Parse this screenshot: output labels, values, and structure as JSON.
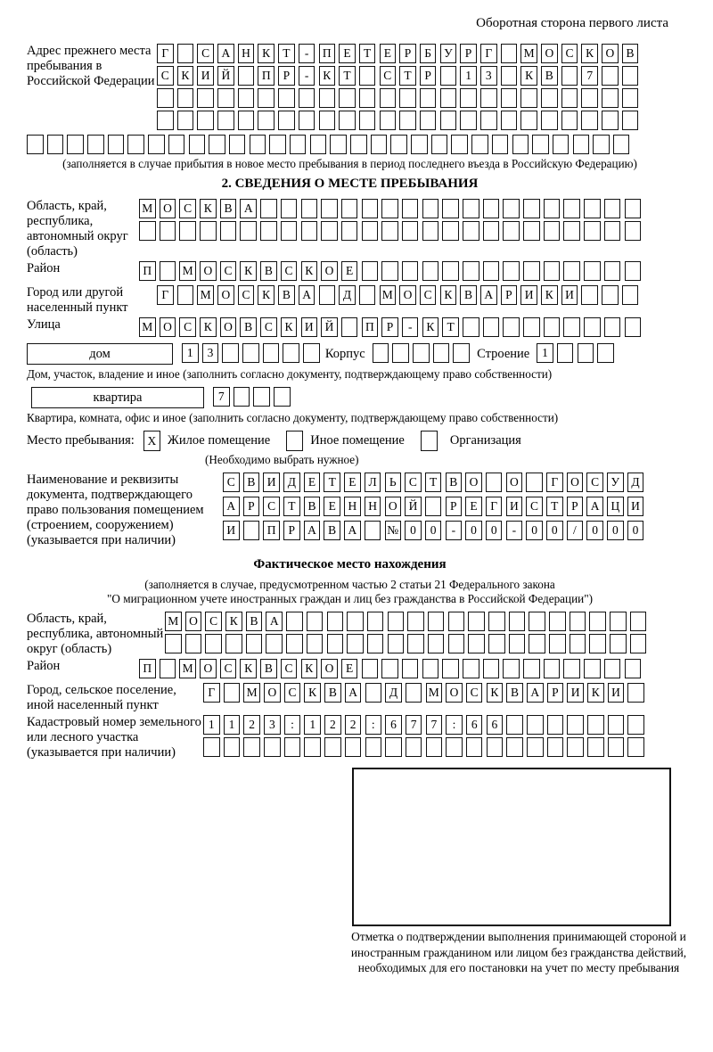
{
  "header": {
    "note": "Оборотная сторона первого листа"
  },
  "prev_address": {
    "label": "Адрес прежнего места пребывания в Российской Федерации",
    "row1": {
      "chars": "Г САНКТ-ПЕТЕРБУРГ МОСКОВ",
      "len": 24
    },
    "row2": {
      "chars": "СКИЙ ПР-КТ СТР 13 КВ 7",
      "len": 24
    },
    "row3": {
      "chars": "",
      "len": 24
    },
    "row4": {
      "chars": "",
      "len": 24
    },
    "row_wide": {
      "chars": "",
      "len": 30
    },
    "note": "(заполняется в случае прибытия в новое место пребывания в период последнего въезда в Российскую Федерацию)"
  },
  "section2": {
    "title": "2. СВЕДЕНИЯ О МЕСТЕ ПРЕБЫВАНИЯ",
    "region": {
      "label": "Область, край, республика, автономный округ (область)",
      "row1": {
        "chars": "МОСКВА",
        "len": 25
      },
      "row2": {
        "chars": "",
        "len": 25
      }
    },
    "district": {
      "label": "Район",
      "row": {
        "chars": "П МОСКВСКОЕ",
        "len": 25
      }
    },
    "city": {
      "label": "Город или другой населенный пункт",
      "row": {
        "chars": "Г МОСКВА Д МОСКВАРИКИ",
        "len": 24
      }
    },
    "street": {
      "label": "Улица",
      "row": {
        "chars": "МОСКОВСКИЙ ПР-КТ",
        "len": 25
      }
    },
    "house": {
      "box_label": "дом",
      "cells": {
        "chars": "13",
        "len": 7
      },
      "korpus_label": "Корпус",
      "korpus_cells": {
        "chars": "",
        "len": 5
      },
      "stroenie_label": "Строение",
      "stroenie_cells": {
        "chars": "1",
        "len": 4
      }
    },
    "house_note": "Дом, участок, владение и иное (заполнить согласно документу, подтверждающему право собственности)",
    "apartment": {
      "box_label": "квартира",
      "cells": {
        "chars": "7",
        "len": 4
      }
    },
    "apartment_note": "Квартира, комната, офис и иное (заполнить согласно документу, подтверждающему право собственности)",
    "stay_type": {
      "label": "Место пребывания:",
      "options": [
        {
          "label": "Жилое помещение",
          "checked": "X"
        },
        {
          "label": "Иное помещение",
          "checked": ""
        },
        {
          "label": "Организация",
          "checked": ""
        }
      ],
      "note": "(Необходимо выбрать нужное)"
    },
    "document": {
      "label": "Наименование и реквизиты документа, подтверждающего право пользования помещением (строением, сооружением) (указывается при наличии)",
      "row1": {
        "chars": "СВИДЕТЕЛЬСТВО О ГОСУД",
        "len": 21
      },
      "row2": {
        "chars": "АРСТВЕННОЙ РЕГИСТРАЦИ",
        "len": 21
      },
      "row3": {
        "chars": "И ПРАВА №00-00-00/000",
        "len": 21
      }
    }
  },
  "actual_location": {
    "title": "Фактическое место нахождения",
    "note1": "(заполняется в случае, предусмотренном частью 2 статьи 21 Федерального закона",
    "note2": "\"О миграционном учете иностранных граждан и лиц без гражданства в Российской Федерации\")",
    "region": {
      "label": "Область, край, республика, автономный округ (область)",
      "row1": {
        "chars": "МОСКВА",
        "len": 24
      },
      "row2": {
        "chars": "",
        "len": 24
      }
    },
    "district": {
      "label": "Район",
      "row": {
        "chars": "П МОСКВСКОЕ",
        "len": 25
      }
    },
    "city": {
      "label": "Город, сельское поселение, иной населенный пункт",
      "row": {
        "chars": "Г МОСКВА Д МОСКВАРИКИ",
        "len": 22
      }
    },
    "cadastral": {
      "label": "Кадастровый номер земельного или лесного участка (указывается при наличии)",
      "row1": {
        "chars": "1123:122:677:66",
        "len": 22
      },
      "row2": {
        "chars": "",
        "len": 22
      }
    },
    "stamp_note": "Отметка о подтверждении выполнения принимающей стороной и иностранным гражданином или лицом без гражданства действий, необходимых для его постановки на учет по месту пребывания"
  }
}
